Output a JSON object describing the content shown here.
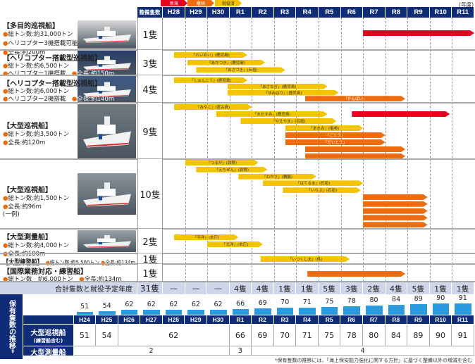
{
  "legend": [
    {
      "label": "新規",
      "color": "#e60020"
    },
    {
      "label": "継続",
      "color": "#ec6c0f"
    },
    {
      "label": "就役済",
      "color": "#f5c400"
    }
  ],
  "unit_label": "(年度)",
  "header": {
    "count_label": "整備隻数",
    "years": [
      "H28",
      "H29",
      "H30",
      "R1",
      "R2",
      "R3",
      "R4",
      "R5",
      "R6",
      "R7",
      "R8",
      "R9",
      "R10",
      "R11"
    ]
  },
  "rows": [
    {
      "title": "【多目的巡視船】",
      "specs": [
        "総トン数:約31,000トン",
        "ヘリコプター3機搭載可能",
        "全長:約200m"
      ],
      "count": "1隻",
      "bars": [
        {
          "from": "R7",
          "ff": 0.0,
          "to": "R11",
          "tf": 1.0,
          "status": "new",
          "label": ""
        }
      ]
    },
    {
      "title": "【ヘリコプター搭載型巡視船】",
      "specs": [
        "総トン数:約6,500トン",
        "ヘリコプター1機搭載",
        "全長:約150m"
      ],
      "count": "3隻",
      "bars": [
        {
          "from": "H28",
          "ff": 0.5,
          "to": "R1",
          "tf": 0.8,
          "status": "done",
          "label": "「れいめい」(鹿児島)"
        },
        {
          "from": "H29",
          "ff": 0.1,
          "to": "R2",
          "tf": 0.6,
          "status": "done",
          "label": "「あかつき」(鹿児島)"
        },
        {
          "from": "H29",
          "ff": 0.5,
          "to": "R3",
          "tf": 0.5,
          "status": "done",
          "label": "「あさづき」(石垣)"
        }
      ]
    },
    {
      "title": "【ヘリコプター搭載型巡視船】",
      "specs": [
        "総トン数:約6,000トン",
        "ヘリコプター2機搭載",
        "全長:約140m"
      ],
      "count": "4隻",
      "bars": [
        {
          "from": "H28",
          "ff": 0.5,
          "to": "R1",
          "tf": 0.8,
          "status": "done",
          "label": "「しゅんこう」(鹿児島)"
        },
        {
          "from": "H30",
          "ff": 0.9,
          "to": "R5",
          "tf": 0.4,
          "status": "done",
          "label": "「あさなぎ」(鹿児島)"
        },
        {
          "from": "H30",
          "ff": 0.9,
          "to": "R5",
          "tf": 0.9,
          "status": "done",
          "label": "「ゆみはり」(鹿児島)"
        },
        {
          "from": "R4",
          "ff": 0.4,
          "to": "R8",
          "tf": 0.9,
          "status": "cont",
          "label": "「かんばい」"
        }
      ]
    },
    {
      "title": "【大型巡視船】",
      "specs": [
        "総トン数:約3,500トン",
        "全長:約120m"
      ],
      "count": "9隻",
      "bars": [
        {
          "from": "H28",
          "ff": 0.5,
          "to": "R1",
          "tf": 1.0,
          "status": "done",
          "label": "「みやこ」(宮古島)"
        },
        {
          "from": "H30",
          "ff": 0.4,
          "to": "R5",
          "tf": 0.4,
          "status": "done",
          "label": "「おおすみ」(鹿児島)",
          "extra": {
            "from": "R6",
            "ff": 0.5,
            "to": "R10",
            "tf": 0.9,
            "status": "new"
          }
        },
        {
          "from": "R1",
          "ff": 0.5,
          "to": "R5",
          "tf": 0.8,
          "status": "done",
          "label": "「やえやま」(石垣)"
        },
        {
          "from": "R3",
          "ff": 0.5,
          "to": "R6",
          "tf": 1.0,
          "status": "done",
          "label": "「あまみ」(奄美)"
        },
        {
          "from": "R3",
          "ff": 0.5,
          "to": "R7",
          "tf": 1.0,
          "status": "cont",
          "label": "「ごとう」"
        },
        {
          "from": "R3",
          "ff": 0.5,
          "to": "R7",
          "tf": 1.0,
          "status": "cont",
          "label": "「だいとう」"
        },
        {
          "from": "R4",
          "ff": 0.4,
          "to": "R8",
          "tf": 0.9,
          "status": "cont",
          "label": ""
        },
        {
          "from": "R4",
          "ff": 0.4,
          "to": "R8",
          "tf": 0.9,
          "status": "cont",
          "label": ""
        }
      ]
    },
    {
      "title": "【大型巡視船】",
      "specs": [
        "総トン数:約1,500トン",
        "全長:約96m"
      ],
      "note": "(一例)",
      "count": "10隻",
      "bars": [
        {
          "from": "H29",
          "ff": 0.0,
          "to": "R2",
          "tf": 0.3,
          "status": "done",
          "label": "「つるが」(敦賀)"
        },
        {
          "from": "H29",
          "ff": 0.5,
          "to": "R2",
          "tf": 0.7,
          "status": "done",
          "label": "「えちぜん」(敦賀)"
        },
        {
          "from": "R1",
          "ff": 0.4,
          "to": "R4",
          "tf": 0.9,
          "status": "done",
          "label": "「わかさ」(舞鶴)"
        },
        {
          "from": "R2",
          "ff": 0.5,
          "to": "R6",
          "tf": 1.0,
          "status": "done",
          "label": "「はてるま」(石垣)"
        },
        {
          "from": "R3",
          "ff": 0.4,
          "to": "R6",
          "tf": 0.9,
          "status": "done",
          "label": "「いらぶ」(石垣)"
        },
        {
          "from": "R7",
          "ff": 0.0,
          "to": "R9",
          "tf": 0.9,
          "status": "cont",
          "label": ""
        },
        {
          "from": "R7",
          "ff": 0.0,
          "to": "R9",
          "tf": 0.9,
          "status": "cont",
          "label": ""
        },
        {
          "from": "R7",
          "ff": 0.0,
          "to": "R9",
          "tf": 0.9,
          "status": "cont",
          "label": ""
        },
        {
          "from": "R7",
          "ff": 0.0,
          "to": "R9",
          "tf": 0.9,
          "status": "cont",
          "label": ""
        },
        {
          "from": "R7",
          "ff": 0.0,
          "to": "R9",
          "tf": 0.9,
          "status": "cont",
          "label": ""
        }
      ]
    },
    {
      "title": "【大型測量船】",
      "specs": [
        "総トン数:約4,000トン",
        "全長:約100m"
      ],
      "count": "2隻",
      "bars": [
        {
          "from": "H28",
          "ff": 0.5,
          "to": "R1",
          "tf": 0.4,
          "status": "done",
          "label": "「平洋」(本庁)"
        },
        {
          "from": "H30",
          "ff": 0.0,
          "to": "R2",
          "tf": 0.5,
          "status": "done",
          "label": "「光洋」(本庁)"
        }
      ]
    },
    {
      "title": "【大型練習船】",
      "specs": [
        "総トン数:約5,500トン",
        "全長:約134m"
      ],
      "count": "1隻",
      "bars": [
        {
          "from": "R2",
          "ff": 0.4,
          "to": "R6",
          "tf": 0.4,
          "status": "done",
          "label": "「いつくしま」(呉)"
        }
      ]
    },
    {
      "title": "【国際業務対応・練習船】",
      "specs": [
        "総トン数　約6,000トン",
        "全長:約134m"
      ],
      "count": "1隻",
      "bars": [
        {
          "from": "R4",
          "ff": 0.5,
          "to": "R8",
          "tf": 0.9,
          "status": "cont",
          "label": ""
        }
      ]
    }
  ],
  "totals": {
    "label": "合計隻数と就役予定年度",
    "total": "31隻",
    "per_year": [
      "—",
      "—",
      "—",
      "4隻",
      "4隻",
      "1隻",
      "1隻",
      "5隻",
      "3隻",
      "2隻",
      "4隻",
      "5隻",
      "1隻",
      "1隻"
    ]
  },
  "holdings": {
    "title": "保有隻数の推移*",
    "years": [
      "H24",
      "H25",
      "H26",
      "H27",
      "H28",
      "H29",
      "H30",
      "R1",
      "R2",
      "R3",
      "R4",
      "R5",
      "R6",
      "R7",
      "R8",
      "R9",
      "R10",
      "R11"
    ],
    "totals": [
      51,
      54,
      62,
      62,
      62,
      62,
      62,
      66,
      69,
      70,
      71,
      75,
      78,
      80,
      84,
      89,
      90,
      91
    ],
    "patrol_label": "大型巡視船",
    "patrol_sub": "(練習船含む)",
    "patrol_cells": [
      {
        "v": "51",
        "span": 1
      },
      {
        "v": "54",
        "span": 1
      },
      {
        "v": "62",
        "span": 5
      },
      {
        "v": "66",
        "span": 1
      },
      {
        "v": "69",
        "span": 1
      },
      {
        "v": "70",
        "span": 1
      },
      {
        "v": "71",
        "span": 1
      },
      {
        "v": "75",
        "span": 1
      },
      {
        "v": "78",
        "span": 1
      },
      {
        "v": "80",
        "span": 1
      },
      {
        "v": "84",
        "span": 1
      },
      {
        "v": "89",
        "span": 1
      },
      {
        "v": "90",
        "span": 1
      },
      {
        "v": "91",
        "span": 1
      }
    ],
    "survey_label": "大型測量船",
    "survey_cells": [
      {
        "v": "2",
        "span": 7
      },
      {
        "v": "3",
        "span": 1
      },
      {
        "v": "4",
        "span": 10
      }
    ],
    "bar_color": "#2b9be0"
  },
  "footnote": "*保有隻数の推移には、「海上保安能力強化に関する方針」に基づく整備以外の増減を含む",
  "colors": {
    "new": "#e60020",
    "cont": "#ec6c0f",
    "done": "#f5c400",
    "header": "#0f2c79"
  }
}
